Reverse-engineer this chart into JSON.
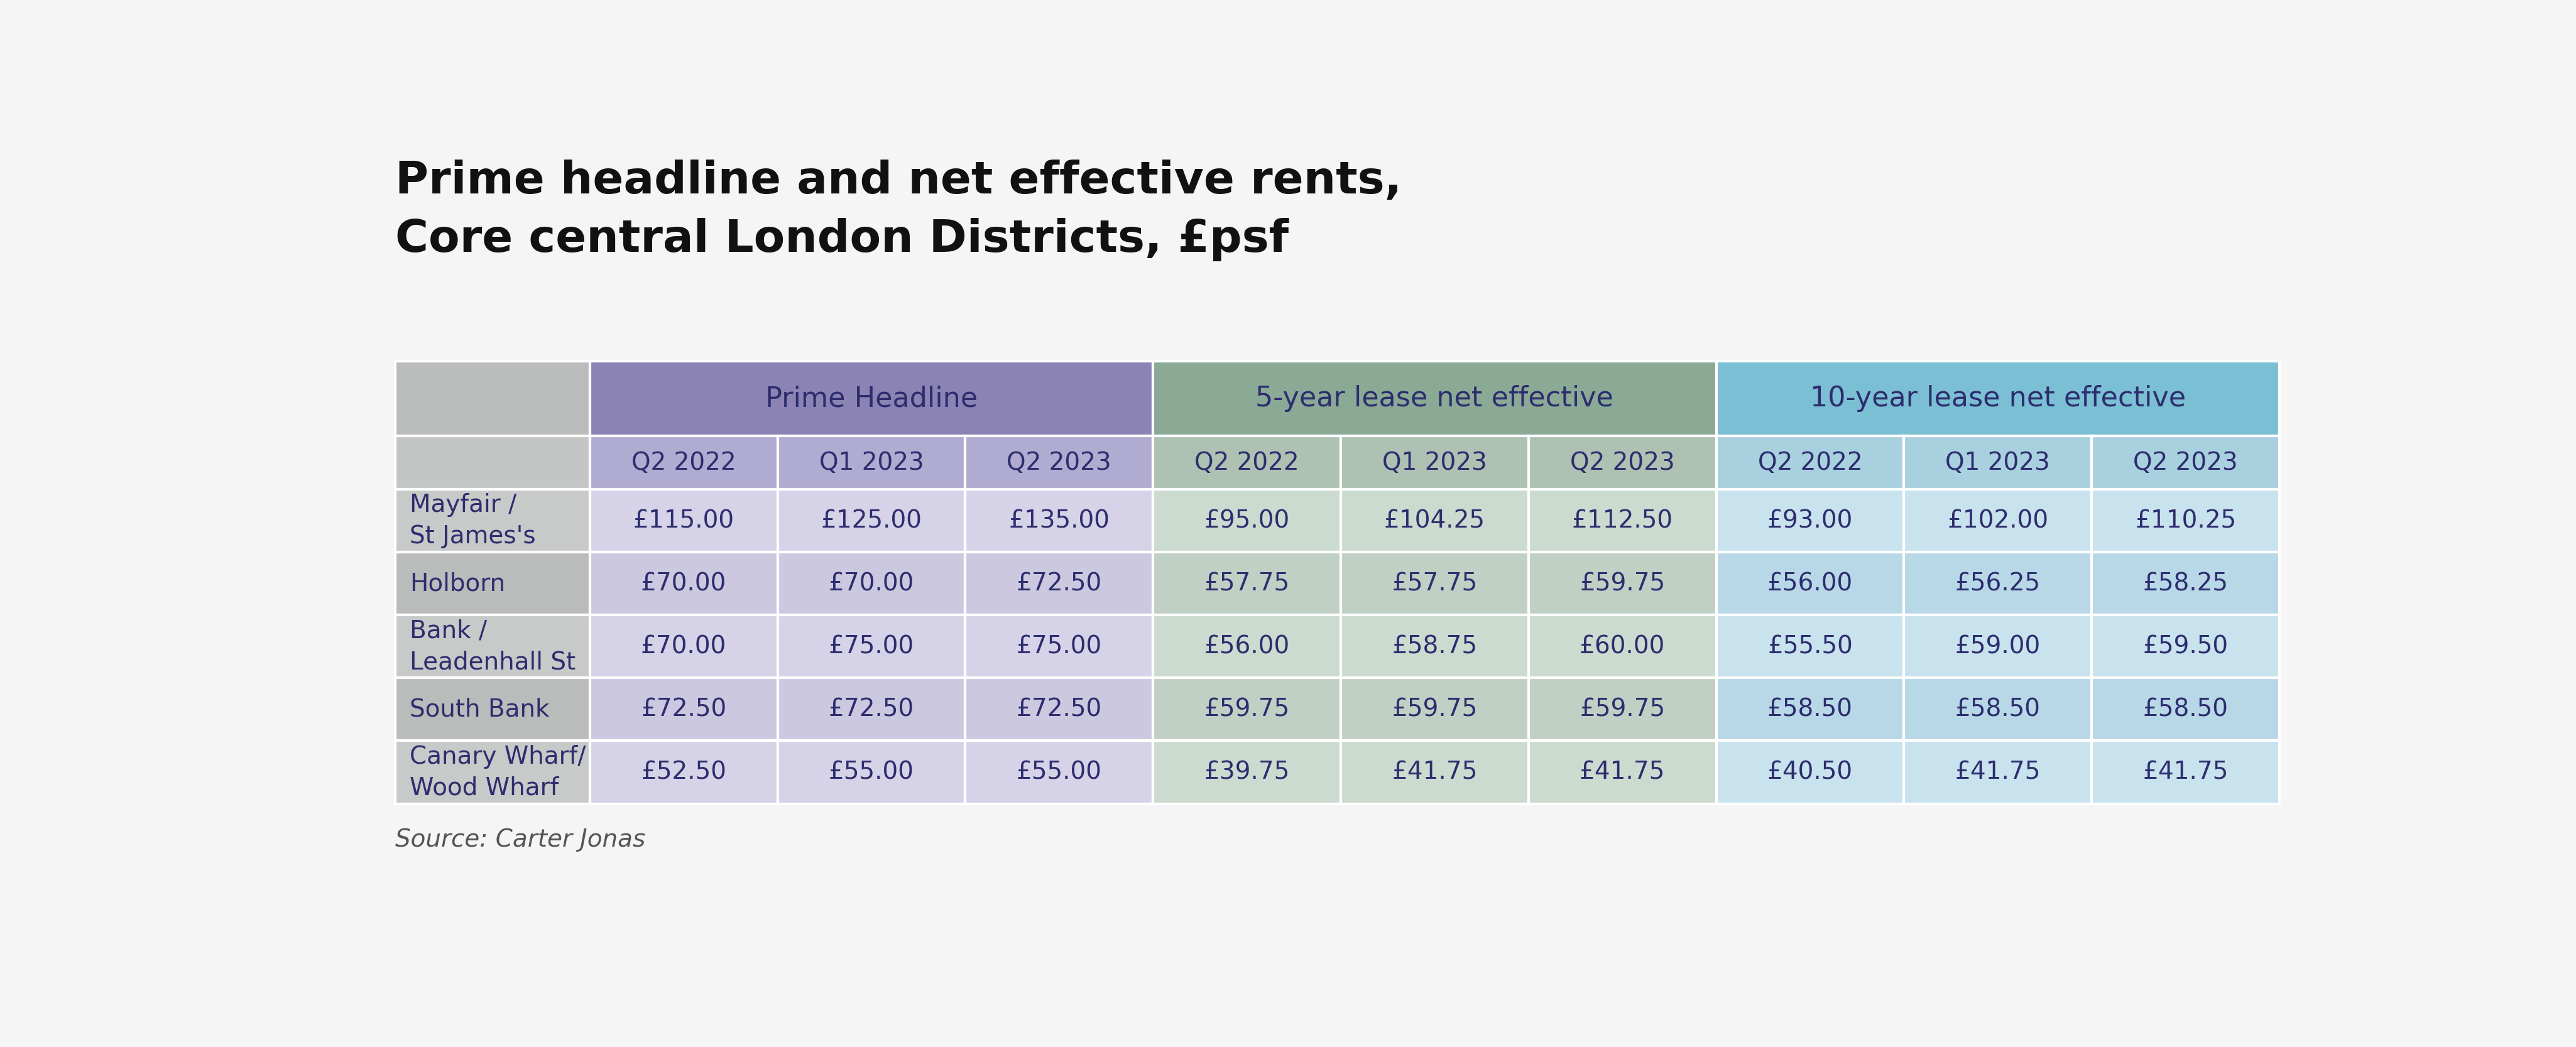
{
  "title": "Prime headline and net effective rents,\nCore central London Districts, £psf",
  "source": "Source: Carter Jonas",
  "background_color": "#f5f5f5",
  "title_color": "#111111",
  "title_fontsize": 52,
  "source_fontsize": 28,
  "col_groups": [
    {
      "label": "Prime Headline",
      "color": "#8b83b4",
      "text_color": "#2d2d6e"
    },
    {
      "label": "5-year lease net effective",
      "color": "#8aaa96",
      "text_color": "#2d2d6e"
    },
    {
      "label": "10-year lease net effective",
      "color": "#7bbfd4",
      "text_color": "#2d2d6e"
    }
  ],
  "col_labels": [
    "Q2 2022",
    "Q1 2023",
    "Q2 2023",
    "Q2 2022",
    "Q1 2023",
    "Q2 2023",
    "Q2 2022",
    "Q1 2023",
    "Q2 2023"
  ],
  "rows": [
    {
      "label": "Mayfair /\nSt James's",
      "values": [
        "£115.00",
        "£125.00",
        "£135.00",
        "£95.00",
        "£104.25",
        "£112.50",
        "£93.00",
        "£102.00",
        "£110.25"
      ]
    },
    {
      "label": "Holborn",
      "values": [
        "£70.00",
        "£70.00",
        "£72.50",
        "£57.75",
        "£57.75",
        "£59.75",
        "£56.00",
        "£56.25",
        "£58.25"
      ]
    },
    {
      "label": "Bank /\nLeadenhall St",
      "values": [
        "£70.00",
        "£75.00",
        "£75.00",
        "£56.00",
        "£58.75",
        "£60.00",
        "£55.50",
        "£59.00",
        "£59.50"
      ]
    },
    {
      "label": "South Bank",
      "values": [
        "£72.50",
        "£72.50",
        "£72.50",
        "£59.75",
        "£59.75",
        "£59.75",
        "£58.50",
        "£58.50",
        "£58.50"
      ]
    },
    {
      "label": "Canary Wharf/\nWood Wharf",
      "values": [
        "£52.50",
        "£55.00",
        "£55.00",
        "£39.75",
        "£41.75",
        "£41.75",
        "£40.50",
        "£41.75",
        "£41.75"
      ]
    }
  ],
  "label_col_bg_group": "#bbbcbc",
  "label_col_bg_sub": "#c4c5c5",
  "label_col_bg_rows": [
    "#c8c9c9",
    "#babcbc"
  ],
  "ph_group_bg": "#8b83b4",
  "ph_sub_bg": "#b0abd0",
  "ph_row_bgs": [
    "#d6d3e8",
    "#ccc8e0"
  ],
  "yr5_group_bg": "#8aaa96",
  "yr5_sub_bg": "#adc2b3",
  "yr5_row_bgs": [
    "#ccdbd0",
    "#c0d0c4"
  ],
  "yr10_group_bg": "#7bbfd4",
  "yr10_sub_bg": "#a8d0df",
  "yr10_row_bgs": [
    "#c8e2ee",
    "#b8d8e8"
  ],
  "header_text_color": "#2d2d6e",
  "cell_text_color": "#2d2d6e",
  "row_label_text_color": "#2d2d6e"
}
